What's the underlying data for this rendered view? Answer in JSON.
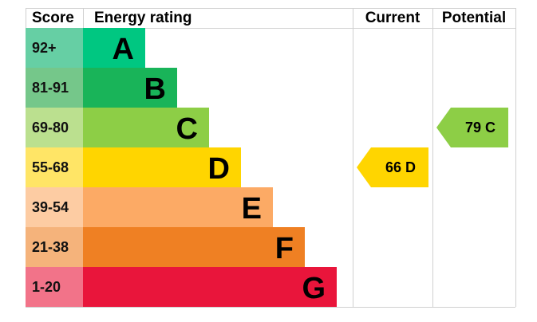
{
  "chart_data": {
    "type": "table",
    "headers": {
      "score": "Score",
      "rating": "Energy rating",
      "current": "Current",
      "potential": "Potential"
    },
    "bands": [
      {
        "letter": "A",
        "range": "92+",
        "color": "#00c781",
        "light": "#66cfa4"
      },
      {
        "letter": "B",
        "range": "81-91",
        "color": "#19b459",
        "light": "#75c78a"
      },
      {
        "letter": "C",
        "range": "69-80",
        "color": "#8dce46",
        "light": "#bbe08f"
      },
      {
        "letter": "D",
        "range": "55-68",
        "color": "#ffd500",
        "light": "#ffe566"
      },
      {
        "letter": "E",
        "range": "39-54",
        "color": "#fcaa65",
        "light": "#fdcca3"
      },
      {
        "letter": "F",
        "range": "21-38",
        "color": "#ef8023",
        "light": "#f5b37b"
      },
      {
        "letter": "G",
        "range": "1-20",
        "color": "#e9153b",
        "light": "#f27389"
      }
    ],
    "current": {
      "value": 66,
      "band": "D",
      "label": "66  D",
      "color": "#ffd500"
    },
    "potential": {
      "value": 79,
      "band": "C",
      "label": "79  C",
      "color": "#8dce46"
    }
  }
}
